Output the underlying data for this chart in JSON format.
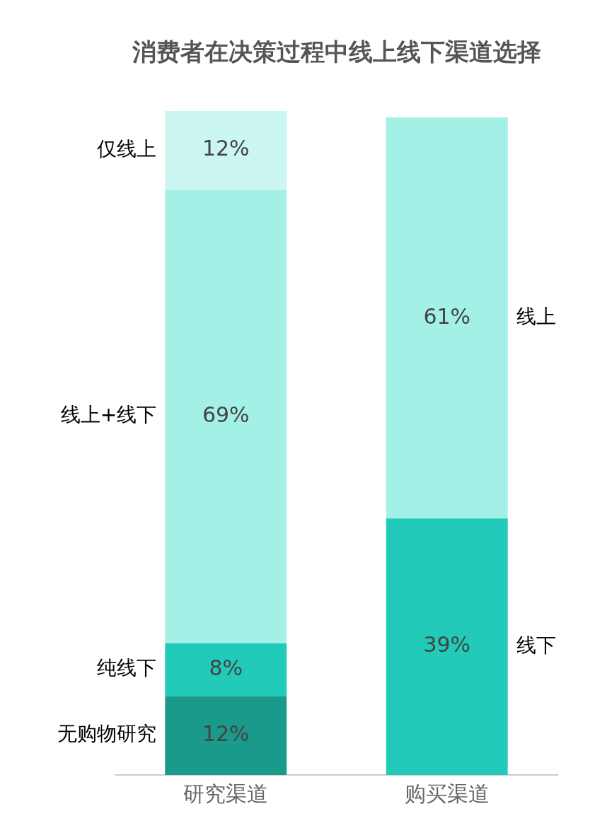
{
  "chart_data": {
    "type": "bar",
    "title": "消费者在决策过程中线上线下渠道选择",
    "categories": [
      "研究渠道",
      "购买渠道"
    ],
    "stacked": true,
    "legend": false,
    "grid": false,
    "series": [
      {
        "name": "无购物研究",
        "color": "#1a9a8a",
        "values": [
          12,
          null
        ],
        "value_labels": [
          "12%",
          null
        ]
      },
      {
        "name": "纯线下",
        "color": "#22cbb9",
        "values": [
          8,
          null
        ],
        "value_labels": [
          "8%",
          null
        ]
      },
      {
        "name": "线上+线下",
        "color": "#a3f0e6",
        "values": [
          69,
          null
        ],
        "value_labels": [
          "69%",
          null
        ]
      },
      {
        "name": "仅线上",
        "color": "#ccf6f1",
        "values": [
          12,
          null
        ],
        "value_labels": [
          "12%",
          null
        ]
      },
      {
        "name": "线下",
        "color": "#22cbb9",
        "values": [
          null,
          39
        ],
        "value_labels": [
          null,
          "39%"
        ]
      },
      {
        "name": "线上",
        "color": "#a3f0e6",
        "values": [
          null,
          61
        ],
        "value_labels": [
          null,
          "61%"
        ]
      }
    ]
  }
}
